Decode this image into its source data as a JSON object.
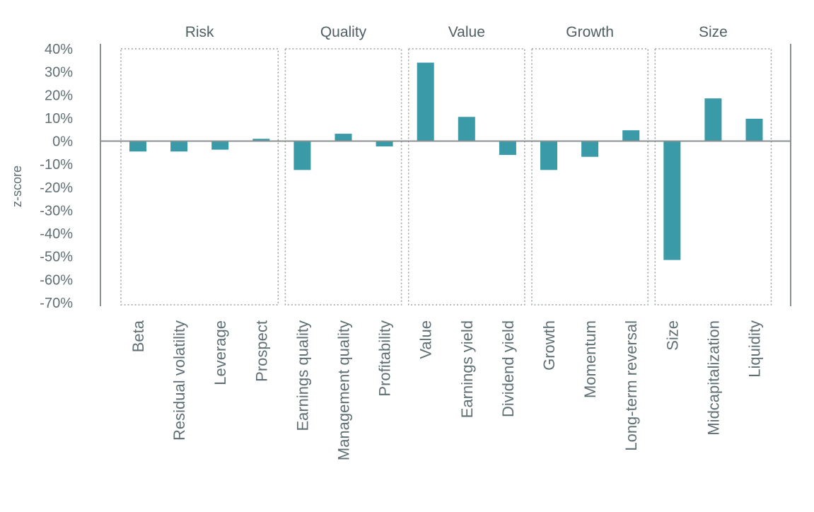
{
  "chart_data": {
    "type": "bar",
    "ylabel": "z-score",
    "ylim": [
      -0.7,
      0.4
    ],
    "yticks": [
      0.4,
      0.3,
      0.2,
      0.1,
      0.0,
      -0.1,
      -0.2,
      -0.3,
      -0.4,
      -0.5,
      -0.6,
      -0.7
    ],
    "ytick_labels": [
      "40%",
      "30%",
      "20%",
      "10%",
      "0%",
      "-10%",
      "-20%",
      "-30%",
      "-40%",
      "-50%",
      "-60%",
      "-70%"
    ],
    "categories": [
      "Beta",
      "Residual volatility",
      "Leverage",
      "Prospect",
      "Earnings quality",
      "Management quality",
      "Profitability",
      "Value",
      "Earnings yield",
      "Dividend yield",
      "Growth",
      "Momentum",
      "Long-term reversal",
      "Size",
      "Midcapitalization",
      "Liquidity"
    ],
    "values": [
      -0.045,
      -0.045,
      -0.037,
      0.01,
      -0.125,
      0.032,
      -0.023,
      0.34,
      0.105,
      -0.06,
      -0.125,
      -0.068,
      0.047,
      -0.515,
      0.185,
      0.097
    ],
    "groups": [
      {
        "name": "Risk",
        "start": 0,
        "end": 3
      },
      {
        "name": "Quality",
        "start": 4,
        "end": 6
      },
      {
        "name": "Value",
        "start": 7,
        "end": 9
      },
      {
        "name": "Growth",
        "start": 10,
        "end": 12
      },
      {
        "name": "Size",
        "start": 13,
        "end": 15
      }
    ],
    "bar_color": "#3a9aa8",
    "grid": false,
    "legend": "none"
  }
}
